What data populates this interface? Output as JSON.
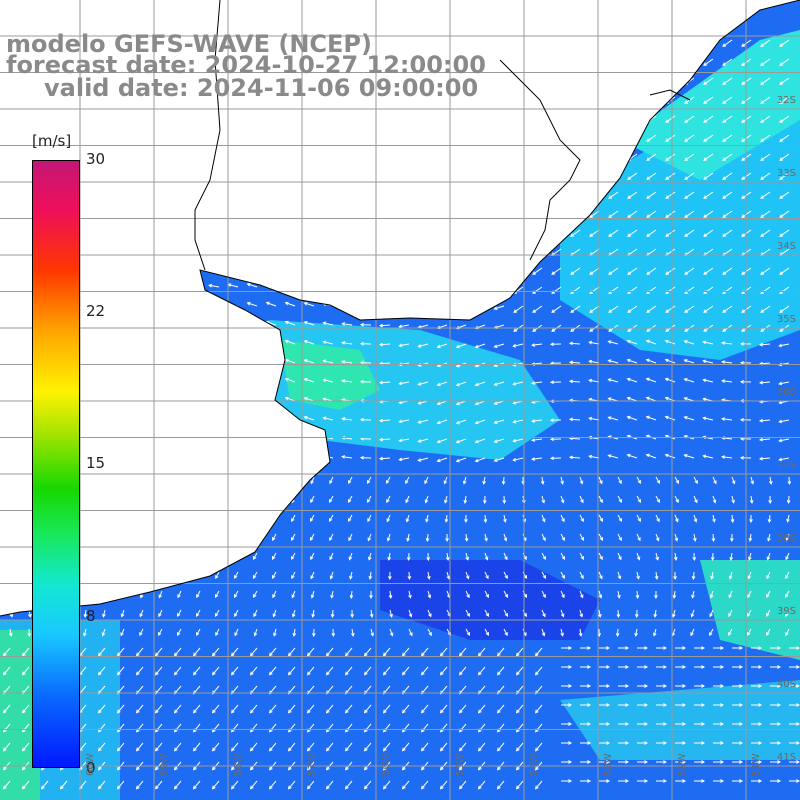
{
  "header": {
    "model": "modelo GEFS-WAVE (NCEP)",
    "forecast_date": "forecast date: 2024-10-27 12:00:00",
    "valid_date": "valid date: 2024-11-06 09:00:00"
  },
  "colorbar": {
    "unit": "[m/s]",
    "ticks": [
      "30",
      "22",
      "15",
      "8",
      "0"
    ],
    "tick_values": [
      30,
      22,
      15,
      8,
      0
    ],
    "range": [
      0,
      30
    ],
    "colors": {
      "low": "#0018ff",
      "mid_low": "#19c9ff",
      "mid": "#17d800",
      "mid_high": "#fff200",
      "high": "#ff3600",
      "top": "#c41677"
    }
  },
  "map": {
    "lat_labels": [
      "32S",
      "33S",
      "34S",
      "35S",
      "36S",
      "37S",
      "38S",
      "39S",
      "40S",
      "41S"
    ],
    "lon_labels": [
      "60W",
      "59W",
      "58W",
      "57W",
      "56W",
      "55W",
      "54W",
      "53W",
      "52W",
      "51W"
    ],
    "land_color": "#ffffff",
    "grid_color": "#9a9a9a",
    "coast_color": "#000000",
    "vector_color": "#ffffff"
  }
}
